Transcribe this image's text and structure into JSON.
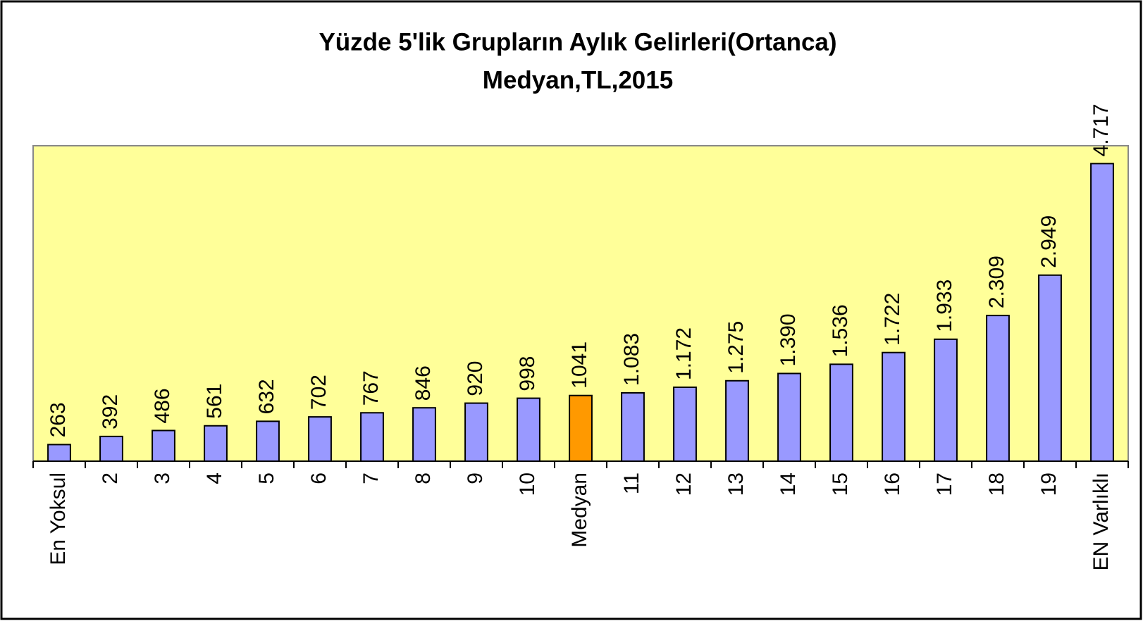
{
  "chart_data": {
    "type": "bar",
    "title": "Yüzde 5'lik Grupların Aylık Gelirleri(Ortanca)",
    "subtitle": "Medyan,TL,2015",
    "categories": [
      "En Yoksul",
      "2",
      "3",
      "4",
      "5",
      "6",
      "7",
      "8",
      "9",
      "10",
      "Medyan",
      "11",
      "12",
      "13",
      "14",
      "15",
      "16",
      "17",
      "18",
      "19",
      "EN Varlıklı"
    ],
    "values": [
      263,
      392,
      486,
      561,
      632,
      702,
      767,
      846,
      920,
      998,
      1041,
      1083,
      1172,
      1275,
      1390,
      1536,
      1722,
      1933,
      2309,
      2949,
      4717
    ],
    "value_labels": [
      "263",
      "392",
      "486",
      "561",
      "632",
      "702",
      "767",
      "846",
      "920",
      "998",
      "1041",
      "1.083",
      "1.172",
      "1.275",
      "1.390",
      "1.536",
      "1.722",
      "1.933",
      "2.309",
      "2.949",
      "4.717"
    ],
    "colors": [
      "#9999ff",
      "#9999ff",
      "#9999ff",
      "#9999ff",
      "#9999ff",
      "#9999ff",
      "#9999ff",
      "#9999ff",
      "#9999ff",
      "#9999ff",
      "#ff9900",
      "#9999ff",
      "#9999ff",
      "#9999ff",
      "#9999ff",
      "#9999ff",
      "#9999ff",
      "#9999ff",
      "#9999ff",
      "#9999ff",
      "#9999ff"
    ],
    "ylim": [
      0,
      5000
    ],
    "plot_background": "#ffff99"
  }
}
